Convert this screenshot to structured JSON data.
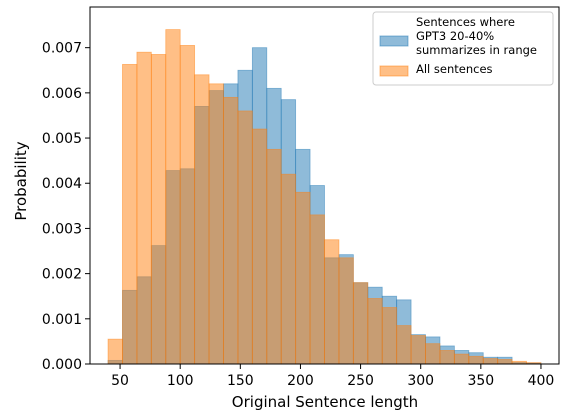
{
  "chart_data": {
    "type": "bar",
    "bin_edges": [
      40,
      52,
      64,
      76,
      88,
      100,
      112,
      124,
      136,
      148,
      160,
      172,
      184,
      196,
      208,
      220,
      232,
      244,
      256,
      268,
      280,
      292,
      304,
      316,
      328,
      340,
      352,
      364,
      376,
      388,
      400
    ],
    "xlabel": "Original Sentence length",
    "ylabel": "Probability",
    "xlim": [
      25,
      415
    ],
    "ylim": [
      0,
      0.0079
    ],
    "xticks": [
      50,
      100,
      150,
      200,
      250,
      300,
      350,
      400
    ],
    "yticks": [
      0.0,
      0.001,
      0.002,
      0.003,
      0.004,
      0.005,
      0.006,
      0.007
    ],
    "ytick_labels": [
      "0.000",
      "0.001",
      "0.002",
      "0.003",
      "0.004",
      "0.005",
      "0.006",
      "0.007"
    ],
    "legend_placement": "top-right",
    "series": [
      {
        "name": "Sentences where GPT3 20-40% summarizes in range",
        "legend_lines": [
          "Sentences where",
          "GPT3 20-40%",
          "summarizes in range"
        ],
        "color": "#1f77b4",
        "values": [
          8e-05,
          0.00163,
          0.00193,
          0.00262,
          0.00428,
          0.00432,
          0.0057,
          0.00605,
          0.0062,
          0.0065,
          0.007,
          0.0061,
          0.00585,
          0.00475,
          0.00395,
          0.00235,
          0.00242,
          0.0018,
          0.0017,
          0.0015,
          0.00142,
          0.00065,
          0.0006,
          0.0004,
          0.0003,
          0.00025,
          0.00015,
          0.00015,
          3e-05,
          2e-05
        ]
      },
      {
        "name": "All sentences",
        "legend_lines": [
          "All sentences"
        ],
        "color": "#ff7f0e",
        "values": [
          0.00055,
          0.00663,
          0.0069,
          0.00685,
          0.0074,
          0.00705,
          0.0064,
          0.0062,
          0.0059,
          0.0056,
          0.0052,
          0.00475,
          0.0042,
          0.0038,
          0.0033,
          0.00275,
          0.00235,
          0.0018,
          0.00145,
          0.00125,
          0.00085,
          0.00063,
          0.00045,
          0.0003,
          0.00022,
          0.00017,
          0.00012,
          0.0001,
          6e-05,
          3e-05
        ]
      }
    ]
  }
}
